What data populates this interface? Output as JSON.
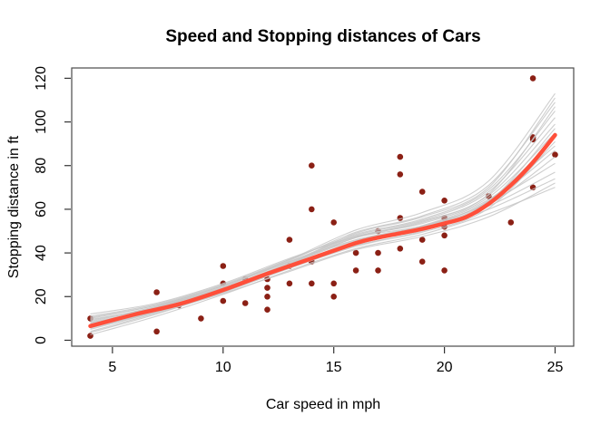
{
  "figure": {
    "background": "#ffffff"
  },
  "colors": {
    "point": "#8B2015",
    "main_line": "#FF4F3A",
    "boot_line": "#C6C6C6",
    "box": "#4a4a4a",
    "tick": "#333333",
    "text": "#000000"
  },
  "chart_data": {
    "type": "scatter",
    "title": "Speed and Stopping distances of Cars",
    "xlabel": "Car speed in mph",
    "ylabel": "Stopping distance in ft",
    "xlim": [
      3.16,
      25.84
    ],
    "ylim": [
      -2.72,
      124.72
    ],
    "x_ticks": [
      5,
      10,
      15,
      20,
      25
    ],
    "y_ticks": [
      0,
      20,
      40,
      60,
      80,
      100,
      120
    ],
    "grid": false,
    "legend": "none",
    "points": [
      [
        4,
        2
      ],
      [
        4,
        10
      ],
      [
        7,
        4
      ],
      [
        7,
        22
      ],
      [
        8,
        16
      ],
      [
        9,
        10
      ],
      [
        10,
        18
      ],
      [
        10,
        26
      ],
      [
        10,
        34
      ],
      [
        11,
        17
      ],
      [
        11,
        28
      ],
      [
        12,
        14
      ],
      [
        12,
        20
      ],
      [
        12,
        24
      ],
      [
        12,
        28
      ],
      [
        13,
        26
      ],
      [
        13,
        34
      ],
      [
        13,
        34
      ],
      [
        13,
        46
      ],
      [
        14,
        26
      ],
      [
        14,
        36
      ],
      [
        14,
        60
      ],
      [
        14,
        80
      ],
      [
        15,
        20
      ],
      [
        15,
        26
      ],
      [
        15,
        54
      ],
      [
        16,
        32
      ],
      [
        16,
        40
      ],
      [
        17,
        32
      ],
      [
        17,
        40
      ],
      [
        17,
        50
      ],
      [
        18,
        42
      ],
      [
        18,
        56
      ],
      [
        18,
        76
      ],
      [
        18,
        84
      ],
      [
        19,
        36
      ],
      [
        19,
        46
      ],
      [
        19,
        68
      ],
      [
        20,
        32
      ],
      [
        20,
        48
      ],
      [
        20,
        52
      ],
      [
        20,
        56
      ],
      [
        20,
        64
      ],
      [
        22,
        66
      ],
      [
        23,
        54
      ],
      [
        24,
        70
      ],
      [
        24,
        92
      ],
      [
        24,
        93
      ],
      [
        24,
        120
      ],
      [
        25,
        85
      ]
    ],
    "main_smooth": {
      "name": "lowess-fit",
      "x": [
        4,
        6,
        8,
        10,
        12,
        14,
        16,
        17,
        18,
        19,
        20,
        21,
        22,
        23,
        24,
        25
      ],
      "y": [
        6.5,
        11.8,
        16.5,
        23,
        30.5,
        37.5,
        44.5,
        47,
        49,
        51,
        53.5,
        56.5,
        62.5,
        71,
        81.5,
        94
      ]
    },
    "bootstrap_smooths": {
      "name": "bootstrap-lowess-lines",
      "x": [
        4,
        7,
        10,
        13,
        16,
        19,
        22,
        25
      ],
      "series": [
        [
          2.5,
          11,
          21,
          32,
          42,
          48.5,
          58,
          70
        ],
        [
          3.5,
          12,
          22,
          33,
          43,
          50,
          60,
          74
        ],
        [
          4,
          12.5,
          21.5,
          31.5,
          41.5,
          47.5,
          56.5,
          72
        ],
        [
          5,
          13,
          22.5,
          33.5,
          44,
          50.5,
          61.5,
          77
        ],
        [
          6,
          13.5,
          23,
          34,
          45,
          51.5,
          63,
          81
        ],
        [
          7,
          14,
          23.5,
          34.5,
          44,
          51,
          62,
          84
        ],
        [
          7.5,
          14.5,
          23,
          34,
          45.5,
          52,
          63.5,
          87
        ],
        [
          8,
          14,
          24,
          35,
          46,
          52.5,
          64.5,
          89
        ],
        [
          6,
          13,
          22,
          33,
          43.5,
          49.5,
          60.5,
          91
        ],
        [
          5.5,
          13.5,
          23.5,
          35,
          47,
          52.5,
          64,
          93
        ],
        [
          7,
          15,
          24,
          35.5,
          47.5,
          53.5,
          65.5,
          95
        ],
        [
          8,
          15,
          24.5,
          36,
          46,
          52,
          63.5,
          97
        ],
        [
          9,
          15.5,
          24,
          35,
          47,
          54,
          66.5,
          99
        ],
        [
          10,
          16,
          25,
          36,
          48,
          55,
          68,
          102
        ],
        [
          11,
          16.5,
          25.5,
          37,
          48.5,
          55.5,
          69,
          105
        ],
        [
          12,
          17,
          26,
          37.5,
          47.5,
          54.5,
          67,
          107
        ],
        [
          10.5,
          16,
          25,
          36.5,
          49.5,
          57,
          71,
          109
        ],
        [
          9.5,
          15,
          24,
          35,
          49,
          56.5,
          70,
          111
        ],
        [
          8.5,
          15.5,
          25,
          37,
          50.5,
          58.5,
          73,
          113
        ]
      ]
    }
  }
}
